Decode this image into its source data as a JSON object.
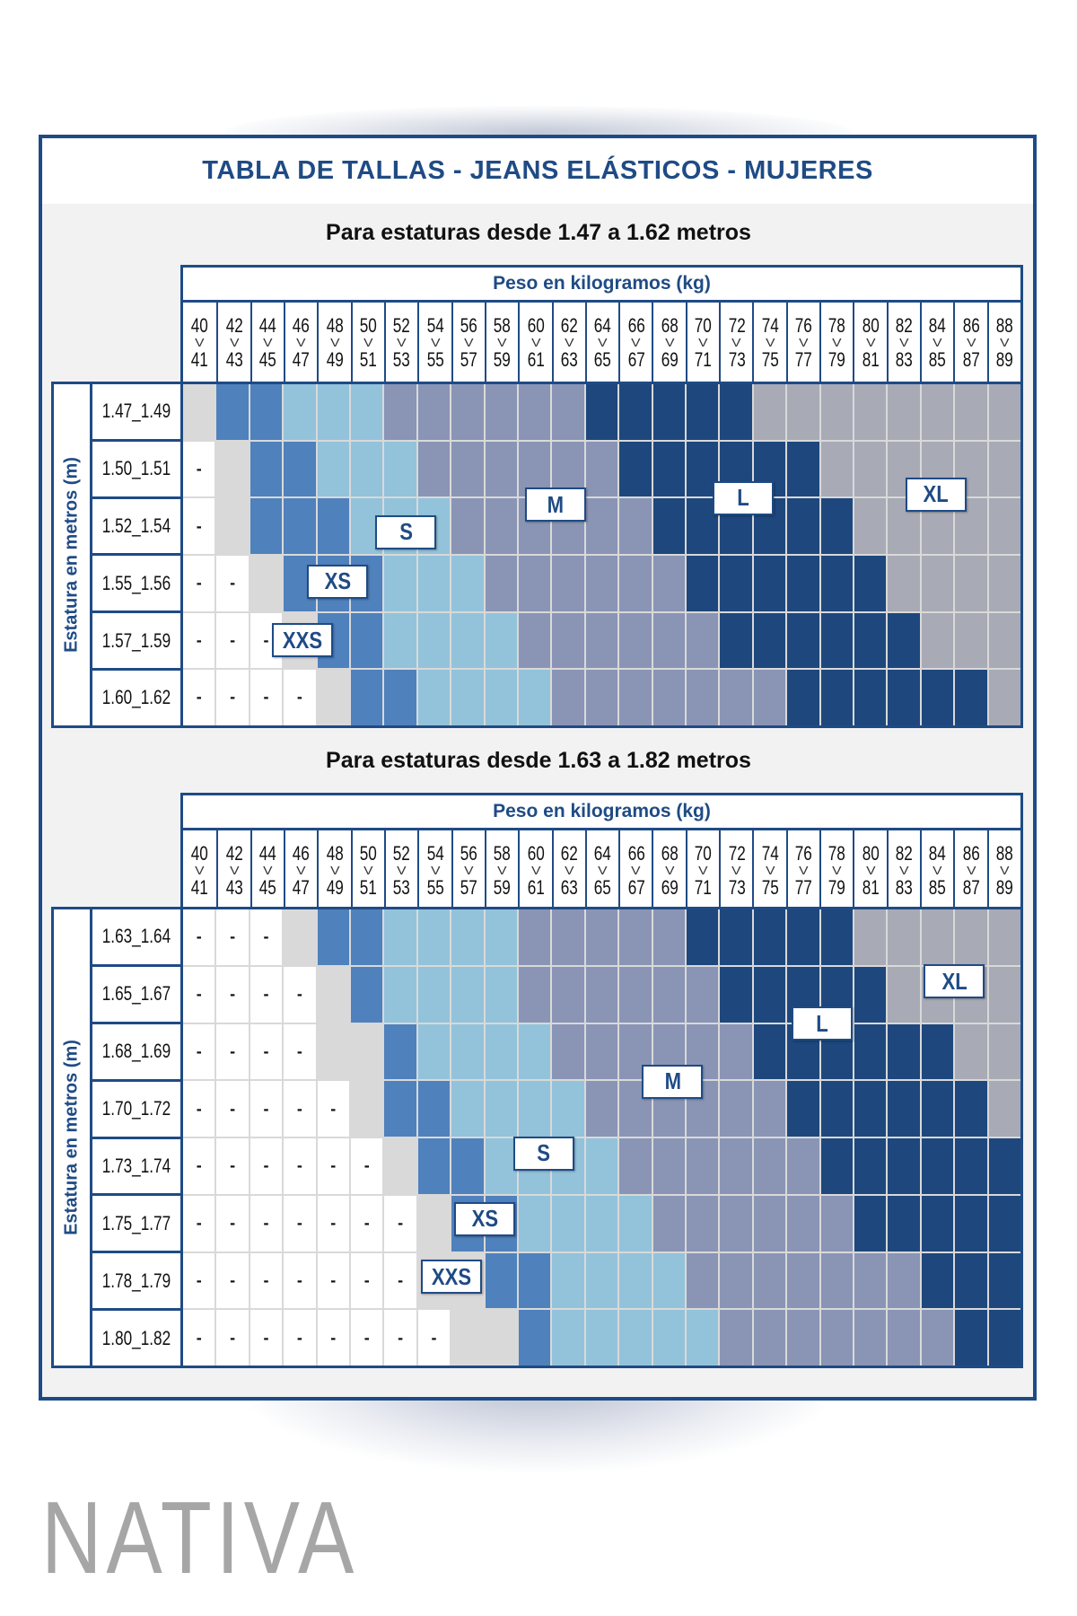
{
  "title": "TABLA DE TALLAS - JEANS ELÁSTICOS - MUJERES",
  "brand": "NATIVA",
  "colors": {
    "frame": "#1f4b85",
    "-": "#ffffff",
    "XXS": "#d9d9d9",
    "XS": "#4f81bd",
    "S": "#93c3da",
    "M": "#8a95b5",
    "L": "#1e477d",
    "XL": "#a8aab5"
  },
  "weight_header": {
    "label": "Peso en kilogramos (kg)",
    "from": [
      "40",
      "42",
      "44",
      "46",
      "48",
      "50",
      "52",
      "54",
      "56",
      "58",
      "60",
      "62",
      "64",
      "66",
      "68",
      "70",
      "72",
      "74",
      "76",
      "78",
      "80",
      "82",
      "84",
      "86",
      "88"
    ],
    "to": [
      "41",
      "43",
      "45",
      "47",
      "49",
      "51",
      "53",
      "55",
      "57",
      "59",
      "61",
      "63",
      "65",
      "67",
      "69",
      "71",
      "73",
      "75",
      "77",
      "79",
      "81",
      "83",
      "85",
      "87",
      "89"
    ],
    "separator": "V"
  },
  "height_axis_label": "Estatura en metros (m)",
  "tables": [
    {
      "subtitle": "Para estaturas desde 1.47 a 1.62 metros",
      "size_labels": [
        "S",
        "M",
        "L",
        "XL",
        "XS",
        "XXS"
      ],
      "rows": [
        {
          "height": "1.47_1.49",
          "cells": [
            "XXS",
            "XS",
            "XS",
            "S",
            "S",
            "S",
            "M",
            "M",
            "M",
            "M",
            "M",
            "M",
            "L",
            "L",
            "L",
            "L",
            "L",
            "XL",
            "XL",
            "XL",
            "XL",
            "XL",
            "XL",
            "XL",
            "XL"
          ]
        },
        {
          "height": "1.50_1.51",
          "cells": [
            "-",
            "XXS",
            "XS",
            "XS",
            "S",
            "S",
            "S",
            "M",
            "M",
            "M",
            "M",
            "M",
            "M",
            "L",
            "L",
            "L",
            "L",
            "L",
            "L",
            "XL",
            "XL",
            "XL",
            "XL",
            "XL",
            "XL"
          ]
        },
        {
          "height": "1.52_1.54",
          "cells": [
            "-",
            "XXS",
            "XS",
            "XS",
            "XS",
            "S",
            "S",
            "S",
            "M",
            "M",
            "M",
            "M",
            "M",
            "M",
            "L",
            "L",
            "L",
            "L",
            "L",
            "L",
            "XL",
            "XL",
            "XL",
            "XL",
            "XL"
          ]
        },
        {
          "height": "1.55_1.56",
          "cells": [
            "-",
            "-",
            "XXS",
            "XS",
            "XS",
            "XS",
            "S",
            "S",
            "S",
            "M",
            "M",
            "M",
            "M",
            "M",
            "M",
            "L",
            "L",
            "L",
            "L",
            "L",
            "L",
            "XL",
            "XL",
            "XL",
            "XL"
          ]
        },
        {
          "height": "1.57_1.59",
          "cells": [
            "-",
            "-",
            "-",
            "XXS",
            "XS",
            "XS",
            "S",
            "S",
            "S",
            "S",
            "M",
            "M",
            "M",
            "M",
            "M",
            "M",
            "L",
            "L",
            "L",
            "L",
            "L",
            "L",
            "XL",
            "XL",
            "XL"
          ]
        },
        {
          "height": "1.60_1.62",
          "cells": [
            "-",
            "-",
            "-",
            "-",
            "XXS",
            "XS",
            "XS",
            "S",
            "S",
            "S",
            "S",
            "M",
            "M",
            "M",
            "M",
            "M",
            "M",
            "M",
            "L",
            "L",
            "L",
            "L",
            "L",
            "L",
            "XL"
          ]
        }
      ]
    },
    {
      "subtitle": "Para estaturas desde 1.63 a 1.82 metros",
      "size_labels": [
        "XL",
        "L",
        "M",
        "S",
        "XS",
        "XXS"
      ],
      "rows": [
        {
          "height": "1.63_1.64",
          "cells": [
            "-",
            "-",
            "-",
            "XXS",
            "XS",
            "XS",
            "S",
            "S",
            "S",
            "S",
            "M",
            "M",
            "M",
            "M",
            "M",
            "L",
            "L",
            "L",
            "L",
            "L",
            "XL",
            "XL",
            "XL",
            "XL",
            "XL"
          ]
        },
        {
          "height": "1.65_1.67",
          "cells": [
            "-",
            "-",
            "-",
            "-",
            "XXS",
            "XS",
            "S",
            "S",
            "S",
            "S",
            "M",
            "M",
            "M",
            "M",
            "M",
            "M",
            "L",
            "L",
            "L",
            "L",
            "L",
            "XL",
            "XL",
            "XL",
            "XL"
          ]
        },
        {
          "height": "1.68_1.69",
          "cells": [
            "-",
            "-",
            "-",
            "-",
            "XXS",
            "XXS",
            "XS",
            "S",
            "S",
            "S",
            "S",
            "M",
            "M",
            "M",
            "M",
            "M",
            "M",
            "L",
            "L",
            "L",
            "L",
            "L",
            "L",
            "XL",
            "XL"
          ]
        },
        {
          "height": "1.70_1.72",
          "cells": [
            "-",
            "-",
            "-",
            "-",
            "-",
            "XXS",
            "XS",
            "XS",
            "S",
            "S",
            "S",
            "S",
            "M",
            "M",
            "M",
            "M",
            "M",
            "M",
            "L",
            "L",
            "L",
            "L",
            "L",
            "L",
            "XL"
          ]
        },
        {
          "height": "1.73_1.74",
          "cells": [
            "-",
            "-",
            "-",
            "-",
            "-",
            "-",
            "XXS",
            "XS",
            "XS",
            "S",
            "S",
            "S",
            "S",
            "M",
            "M",
            "M",
            "M",
            "M",
            "M",
            "L",
            "L",
            "L",
            "L",
            "L",
            "L"
          ]
        },
        {
          "height": "1.75_1.77",
          "cells": [
            "-",
            "-",
            "-",
            "-",
            "-",
            "-",
            "-",
            "XXS",
            "XS",
            "XS",
            "S",
            "S",
            "S",
            "S",
            "M",
            "M",
            "M",
            "M",
            "M",
            "M",
            "L",
            "L",
            "L",
            "L",
            "L"
          ]
        },
        {
          "height": "1.78_1.79",
          "cells": [
            "-",
            "-",
            "-",
            "-",
            "-",
            "-",
            "-",
            "XXS",
            "XXS",
            "XS",
            "XS",
            "S",
            "S",
            "S",
            "S",
            "M",
            "M",
            "M",
            "M",
            "M",
            "M",
            "M",
            "L",
            "L",
            "L"
          ]
        },
        {
          "height": "1.80_1.82",
          "cells": [
            "-",
            "-",
            "-",
            "-",
            "-",
            "-",
            "-",
            "-",
            "XXS",
            "XXS",
            "XS",
            "S",
            "S",
            "S",
            "S",
            "S",
            "M",
            "M",
            "M",
            "M",
            "M",
            "M",
            "M",
            "L",
            "L"
          ]
        }
      ]
    }
  ]
}
